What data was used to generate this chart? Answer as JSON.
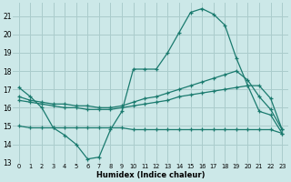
{
  "xlabel": "Humidex (Indice chaleur)",
  "background_color": "#cce8e8",
  "grid_color": "#aacccc",
  "line_color": "#1a7a6e",
  "xlim": [
    -0.5,
    23.5
  ],
  "ylim": [
    13,
    21.7
  ],
  "xticks": [
    0,
    1,
    2,
    3,
    4,
    5,
    6,
    7,
    8,
    9,
    10,
    11,
    12,
    13,
    14,
    15,
    16,
    17,
    18,
    19,
    20,
    21,
    22,
    23
  ],
  "yticks": [
    13,
    14,
    15,
    16,
    17,
    18,
    19,
    20,
    21
  ],
  "series": [
    {
      "x": [
        0,
        1,
        2,
        3,
        4,
        5,
        6,
        7,
        8,
        9,
        10,
        11,
        12,
        13,
        14,
        15,
        16,
        17,
        18,
        19,
        20,
        21,
        22,
        23
      ],
      "y": [
        17.1,
        16.6,
        16.0,
        14.9,
        14.5,
        14.0,
        13.2,
        13.3,
        14.8,
        15.8,
        18.1,
        18.1,
        18.1,
        19.0,
        20.1,
        21.2,
        21.4,
        21.1,
        20.5,
        18.7,
        17.2,
        15.8,
        15.6,
        14.6
      ]
    },
    {
      "x": [
        0,
        1,
        2,
        3,
        4,
        5,
        6,
        7,
        8,
        9,
        10,
        11,
        12,
        13,
        14,
        15,
        16,
        17,
        18,
        19,
        20,
        21,
        22,
        23
      ],
      "y": [
        16.6,
        16.4,
        16.3,
        16.2,
        16.2,
        16.1,
        16.1,
        16.0,
        16.0,
        16.1,
        16.3,
        16.5,
        16.6,
        16.8,
        17.0,
        17.2,
        17.4,
        17.6,
        17.8,
        18.0,
        17.5,
        16.6,
        15.9,
        14.8
      ]
    },
    {
      "x": [
        0,
        1,
        2,
        3,
        4,
        5,
        6,
        7,
        8,
        9,
        10,
        11,
        12,
        13,
        14,
        15,
        16,
        17,
        18,
        19,
        20,
        21,
        22,
        23
      ],
      "y": [
        16.4,
        16.3,
        16.2,
        16.1,
        16.0,
        16.0,
        15.9,
        15.9,
        15.9,
        16.0,
        16.1,
        16.2,
        16.3,
        16.4,
        16.6,
        16.7,
        16.8,
        16.9,
        17.0,
        17.1,
        17.2,
        17.2,
        16.5,
        14.8
      ]
    },
    {
      "x": [
        0,
        1,
        2,
        3,
        4,
        5,
        6,
        7,
        8,
        9,
        10,
        11,
        12,
        13,
        14,
        15,
        16,
        17,
        18,
        19,
        20,
        21,
        22,
        23
      ],
      "y": [
        15.0,
        14.9,
        14.9,
        14.9,
        14.9,
        14.9,
        14.9,
        14.9,
        14.9,
        14.9,
        14.8,
        14.8,
        14.8,
        14.8,
        14.8,
        14.8,
        14.8,
        14.8,
        14.8,
        14.8,
        14.8,
        14.8,
        14.8,
        14.6
      ]
    }
  ]
}
